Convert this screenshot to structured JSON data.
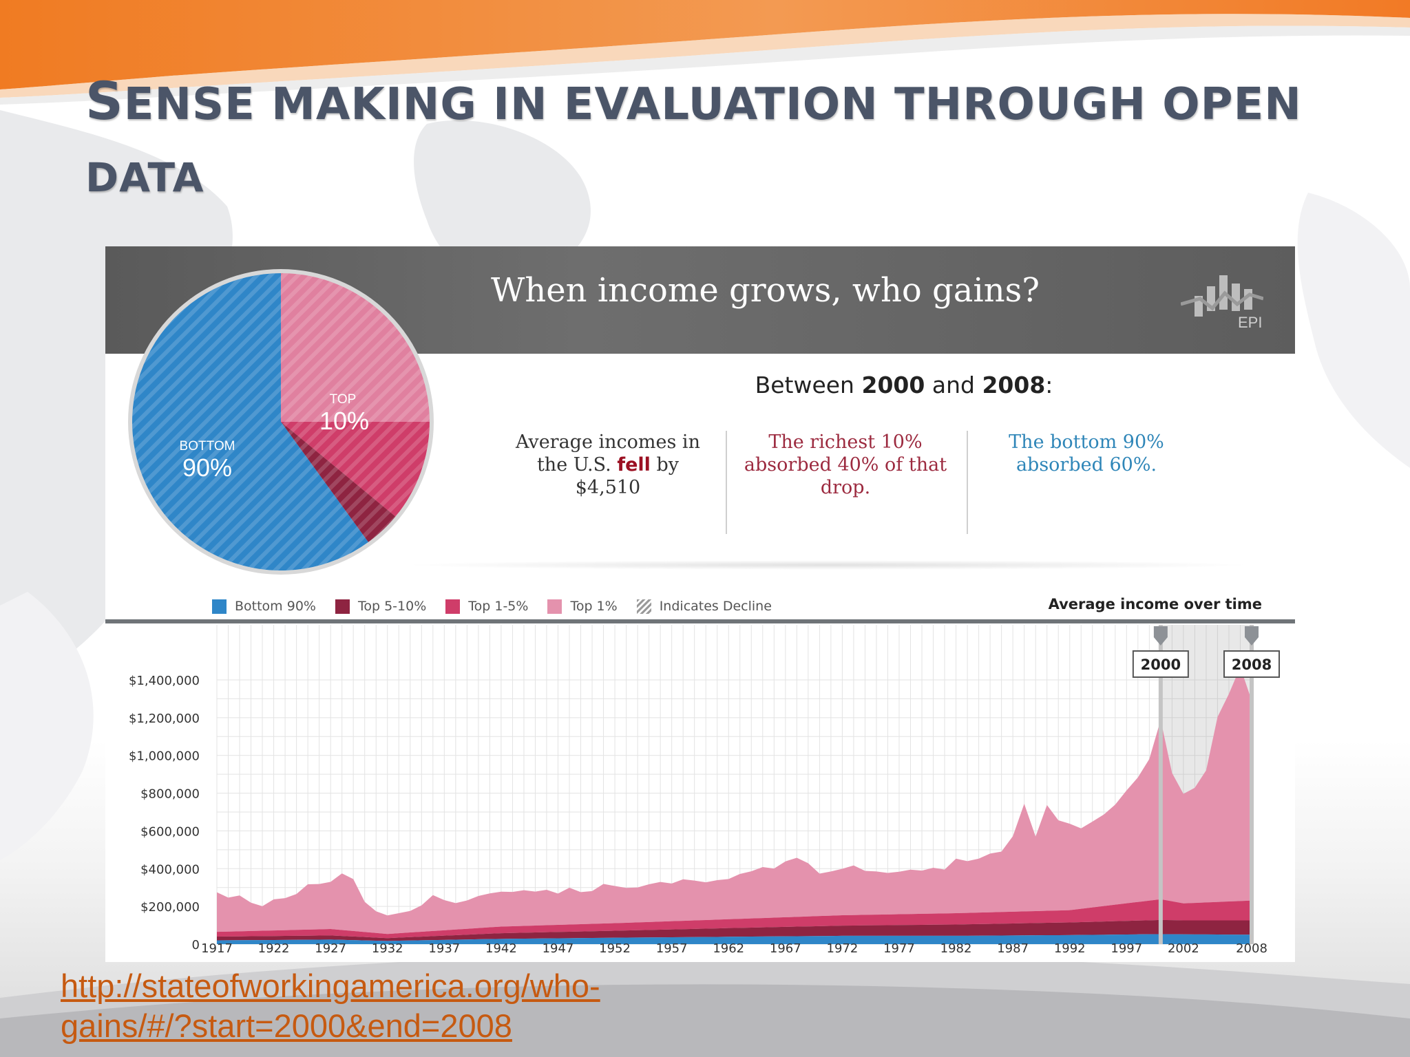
{
  "slide": {
    "title_first_letter": "S",
    "title_line1_rest": "ENSE MAKING IN EVALUATION THROUGH OPEN",
    "title_line2": "DATA",
    "link_line1": "http://stateofworkingamerica.org/who-",
    "link_line2": "gains/#/?start=2000&end=2008",
    "colors": {
      "title": "#4b5568",
      "link": "#c65a11",
      "orange_wave": "#f07b22"
    }
  },
  "infographic": {
    "header_title": "When income grows, who gains?",
    "logo_text": "EPI",
    "period_prefix": "Between",
    "period_start": "2000",
    "period_and": "and",
    "period_end": "2008",
    "period_suffix": ":",
    "stat_avg_line1": "Average incomes in",
    "stat_avg_line2_a": "the U.S.",
    "stat_avg_fell": "fell",
    "stat_avg_line2_b": "by",
    "stat_avg_line3": "$4,510",
    "stat_rich": "The richest 10% absorbed 40% of that drop.",
    "stat_bottom": "The bottom 90% absorbed 60%.",
    "colors": {
      "header_band": "#5f5f5f",
      "fell": "#9b1022",
      "rich_text": "#9c2a3f",
      "bottom_text": "#2f86b8"
    }
  },
  "chart_data": [
    {
      "type": "pie",
      "slices": [
        {
          "name": "BOTTOM",
          "label": "90%",
          "value": 60,
          "color": "#2f86c8"
        },
        {
          "name": "TOP",
          "label": "10%",
          "value": 40,
          "color": "#e07c9c"
        }
      ],
      "sub_slices_of_top": [
        {
          "name": "Top 1%",
          "value": 25,
          "color": "#e0809f"
        },
        {
          "name": "Top 1-5%",
          "value": 11,
          "color": "#cf3d69"
        },
        {
          "name": "Top 5-10%",
          "value": 4,
          "color": "#8e2441"
        }
      ],
      "hatched": true
    },
    {
      "type": "area",
      "title": "Average income over time",
      "legend": [
        {
          "name": "Bottom 90%",
          "color": "#2f86c8"
        },
        {
          "name": "Top 5-10%",
          "color": "#8e2441"
        },
        {
          "name": "Top 1-5%",
          "color": "#cf3d69"
        },
        {
          "name": "Top 1%",
          "color": "#e492ad"
        },
        {
          "name": "Indicates Decline",
          "color": "#999999"
        }
      ],
      "x_ticks": [
        "1917",
        "1922",
        "1927",
        "1932",
        "1937",
        "1942",
        "1947",
        "1952",
        "1957",
        "1962",
        "1967",
        "1972",
        "1977",
        "1982",
        "1987",
        "1992",
        "1997",
        "2002",
        "2008"
      ],
      "y_ticks": [
        "0",
        "$200,000",
        "$400,000",
        "$600,000",
        "$800,000",
        "$1,000,000",
        "$1,200,000",
        "$1,400,000"
      ],
      "ylim": [
        0,
        1400000
      ],
      "xlim": [
        1917,
        2008
      ],
      "grid": true,
      "stacked": true,
      "highlight": {
        "start": 2000,
        "end": 2008,
        "start_label": "2000",
        "end_label": "2008"
      },
      "series": [
        {
          "name": "Bottom 90%",
          "color": "#2f86c8",
          "x": [
            1917,
            1927,
            1932,
            1942,
            1952,
            1962,
            1972,
            1982,
            1992,
            2000,
            2002,
            2008
          ],
          "y": [
            20000,
            24000,
            17000,
            28000,
            34000,
            39000,
            44000,
            44000,
            48000,
            53000,
            52000,
            50000
          ]
        },
        {
          "name": "Top 5-10%",
          "color": "#8e2441",
          "x": [
            1917,
            1927,
            1932,
            1942,
            1952,
            1962,
            1972,
            1982,
            1992,
            2000,
            2002,
            2008
          ],
          "y": [
            20000,
            22000,
            15000,
            30000,
            37000,
            46000,
            54000,
            60000,
            67000,
            75000,
            74000,
            76000
          ]
        },
        {
          "name": "Top 1-5%",
          "color": "#cf3d69",
          "x": [
            1917,
            1927,
            1932,
            1942,
            1952,
            1962,
            1972,
            1982,
            1992,
            2000,
            2002,
            2008
          ],
          "y": [
            25000,
            34000,
            22000,
            35000,
            40000,
            47000,
            55000,
            60000,
            65000,
            110000,
            90000,
            105000
          ]
        },
        {
          "name": "Top 1%",
          "color": "#e492ad",
          "x": [
            1917,
            1918,
            1919,
            1920,
            1921,
            1922,
            1923,
            1924,
            1925,
            1926,
            1927,
            1928,
            1929,
            1930,
            1931,
            1932,
            1933,
            1934,
            1935,
            1936,
            1937,
            1938,
            1939,
            1940,
            1941,
            1942,
            1943,
            1944,
            1945,
            1946,
            1947,
            1948,
            1949,
            1950,
            1951,
            1952,
            1953,
            1954,
            1955,
            1956,
            1957,
            1958,
            1959,
            1960,
            1961,
            1962,
            1963,
            1964,
            1965,
            1966,
            1967,
            1968,
            1969,
            1970,
            1971,
            1972,
            1973,
            1974,
            1975,
            1976,
            1977,
            1978,
            1979,
            1980,
            1981,
            1982,
            1983,
            1984,
            1985,
            1986,
            1987,
            1988,
            1989,
            1990,
            1991,
            1992,
            1993,
            1994,
            1995,
            1996,
            1997,
            1998,
            1999,
            2000,
            2001,
            2002,
            2003,
            2004,
            2005,
            2006,
            2007,
            2008
          ],
          "y": [
            210000,
            180000,
            190000,
            150000,
            130000,
            165000,
            170000,
            190000,
            240000,
            240000,
            250000,
            300000,
            275000,
            160000,
            115000,
            98000,
            106000,
            114000,
            140000,
            190000,
            160000,
            140000,
            150000,
            170000,
            180000,
            185000,
            182000,
            189000,
            180000,
            188000,
            166000,
            195000,
            170000,
            174000,
            210000,
            197000,
            185000,
            185000,
            200000,
            210000,
            200000,
            220000,
            211000,
            200000,
            209000,
            213000,
            238000,
            250000,
            270000,
            260000,
            296000,
            313000,
            282000,
            225000,
            234000,
            246000,
            263000,
            233000,
            229000,
            220000,
            225000,
            235000,
            229000,
            243000,
            232000,
            289000,
            274000,
            286000,
            311000,
            320000,
            400000,
            570000,
            395000,
            560000,
            478000,
            458000,
            426000,
            455000,
            485000,
            530000,
            598000,
            660000,
            750000,
            950000,
            680000,
            580000,
            610000,
            700000,
            980000,
            1100000,
            1240000,
            1060000
          ]
        }
      ]
    }
  ]
}
